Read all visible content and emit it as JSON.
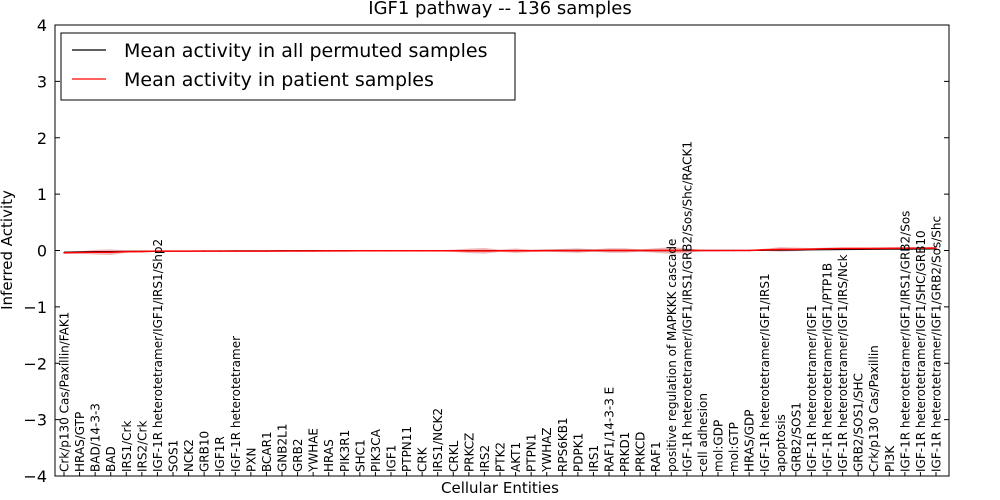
{
  "chart_data": {
    "type": "line",
    "title": "IGF1 pathway -- 136 samples",
    "xlabel": "Cellular Entities",
    "ylabel": "Inferred Activity",
    "ylim": [
      -4,
      4
    ],
    "yticks": [
      -4,
      -3,
      -2,
      -1,
      0,
      1,
      2,
      3,
      4
    ],
    "ytick_labels": [
      "−4",
      "−3",
      "−2",
      "−1",
      "0",
      "1",
      "2",
      "3",
      "4"
    ],
    "legend_position": "top-left",
    "colors": {
      "permuted": "#000000",
      "patient": "#ff0000",
      "band": "#e8a0a0"
    },
    "categories": [
      "Crk/p130 Cas/Paxillin/FAK1",
      "HRAS/GTP",
      "BAD/14-3-3",
      "BAD",
      "IRS1/Crk",
      "IRS2/Crk",
      "IGF-1R heterotetramer/IGF1/IRS1/Shp2",
      "SOS1",
      "NCK2",
      "GRB10",
      "IGF1R",
      "IGF-1R heterotetramer",
      "PXN",
      "BCAR1",
      "GNB2L1",
      "GRB2",
      "YWHAE",
      "HRAS",
      "PIK3R1",
      "SHC1",
      "PIK3CA",
      "IGF1",
      "PTPN11",
      "CRK",
      "IRS1/NCK2",
      "CRKL",
      "PRKCZ",
      "IRS2",
      "PTK2",
      "AKT1",
      "PTPN1",
      "YWHAZ",
      "RPS6KB1",
      "PDPK1",
      "IRS1",
      "RAF1/14-3-3 E",
      "PRKD1",
      "PRKCD",
      "RAF1",
      "positive regulation of MAPKKK cascade",
      "IGF-1R heterotetramer/IGF1/IRS1/GRB2/Sos/Shc/RACK1",
      "cell adhesion",
      "mol:GDP",
      "mol:GTP",
      "HRAS/GDP",
      "IGF-1R heterotetramer/IGF1/IRS1",
      "apoptosis",
      "GRB2/SOS1",
      "IGF-1R heterotetramer/IGF1",
      "IGF-1R heterotetramer/IGF1/PTP1B",
      "IGF-1R heterotetramer/IGF1/IRS/Nck",
      "GRB2/SOS1/SHC",
      "Crk/p130 Cas/Paxillin",
      "PI3K",
      "IGF-1R heterotetramer/IGF1/IRS1/GRB2/Sos",
      "IGF-1R heterotetramer/IGF1/SHC/GRB10",
      "IGF-1R heterotetramer/IGF1/GRB2/Sos/Shc"
    ],
    "series": [
      {
        "name": "Mean activity in all permuted samples",
        "color": "#000000",
        "values": [
          -0.03,
          -0.025,
          -0.02,
          -0.02,
          -0.015,
          -0.015,
          -0.01,
          -0.01,
          -0.01,
          -0.008,
          -0.008,
          -0.007,
          -0.006,
          -0.006,
          -0.005,
          -0.005,
          -0.005,
          -0.004,
          -0.004,
          -0.004,
          -0.003,
          -0.003,
          -0.003,
          -0.002,
          -0.002,
          -0.002,
          -0.002,
          -0.001,
          -0.001,
          -0.001,
          -0.001,
          0,
          0,
          0,
          0,
          0,
          0,
          0,
          0,
          0,
          0,
          0,
          0,
          0.001,
          0.001,
          0.003,
          0.006,
          0.008,
          0.012,
          0.015,
          0.018,
          0.02,
          0.022,
          0.024,
          0.025,
          0.026,
          0.028
        ]
      },
      {
        "name": "Mean activity in patient samples",
        "color": "#ff0000",
        "values": [
          -0.04,
          -0.035,
          -0.03,
          -0.03,
          -0.02,
          -0.018,
          -0.012,
          -0.012,
          -0.012,
          -0.01,
          -0.01,
          -0.01,
          -0.01,
          -0.01,
          -0.008,
          -0.008,
          -0.008,
          -0.007,
          -0.006,
          -0.005,
          -0.005,
          -0.005,
          -0.005,
          -0.005,
          -0.005,
          -0.005,
          -0.006,
          -0.006,
          -0.004,
          -0.004,
          -0.004,
          -0.002,
          -0.002,
          -0.002,
          -0.001,
          -0.001,
          -0.001,
          -0.001,
          -0.001,
          0,
          0,
          0,
          0,
          0,
          0.001,
          0.012,
          0.02,
          0.02,
          0.025,
          0.03,
          0.035,
          0.035,
          0.036,
          0.038,
          0.04,
          0.04,
          0.042
        ],
        "spread": [
          0.02,
          0.02,
          0.04,
          0.05,
          0.02,
          0.02,
          0.01,
          0.01,
          0.01,
          0.01,
          0.01,
          0.01,
          0.01,
          0.01,
          0.01,
          0.01,
          0.01,
          0.01,
          0.01,
          0.01,
          0.01,
          0.01,
          0.01,
          0.01,
          0.01,
          0.02,
          0.04,
          0.05,
          0.02,
          0.04,
          0.02,
          0.02,
          0.03,
          0.04,
          0.02,
          0.04,
          0.04,
          0.02,
          0.04,
          0.06,
          0.04,
          0.01,
          0.01,
          0.01,
          0.01,
          0.02,
          0.04,
          0.03,
          0.02,
          0.02,
          0.02,
          0.02,
          0.02,
          0.02,
          0.02,
          0.02,
          0.02
        ]
      }
    ]
  }
}
